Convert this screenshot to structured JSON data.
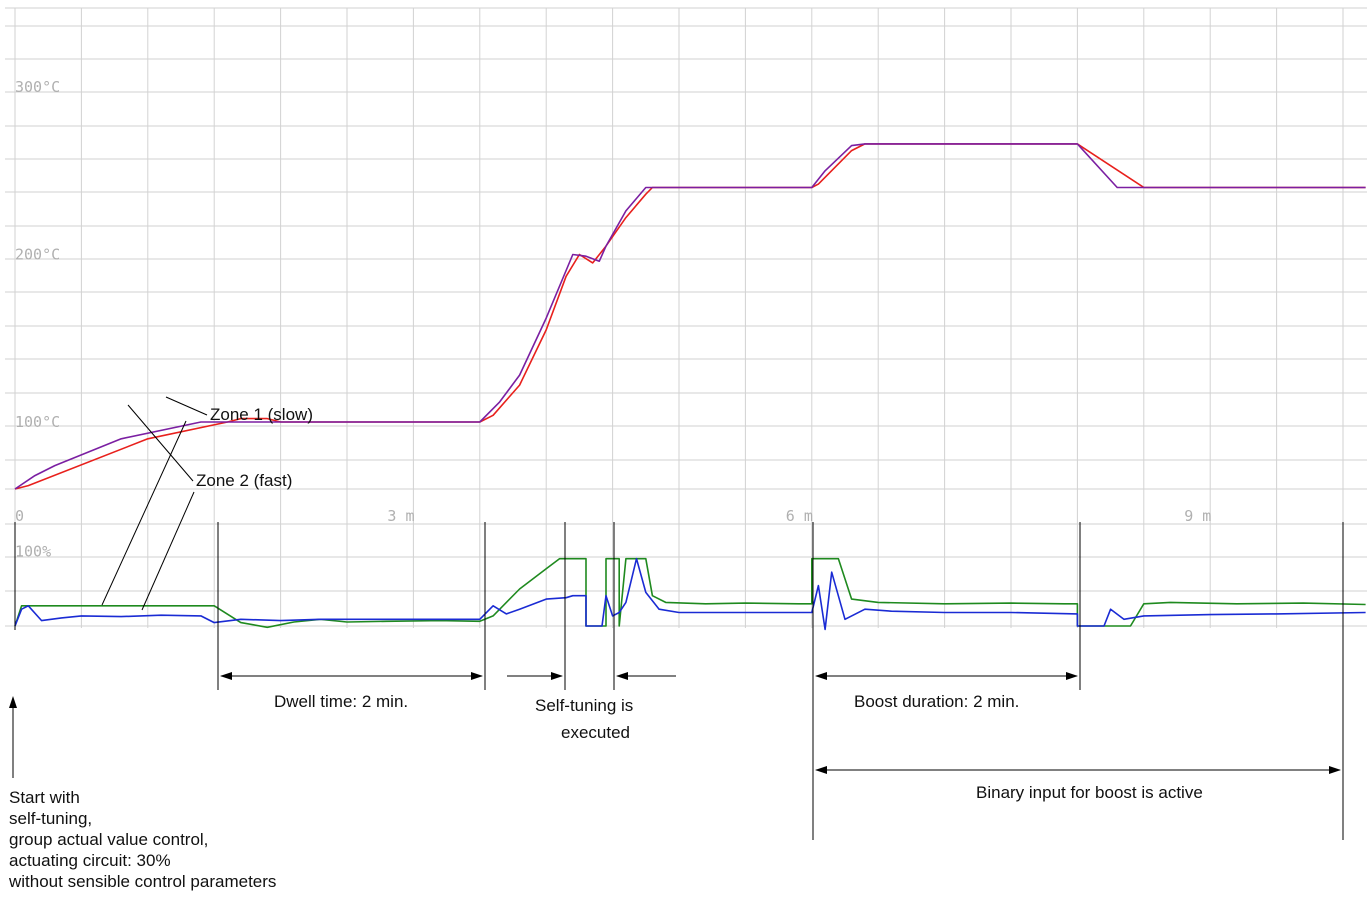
{
  "chart_data": {
    "type": "line",
    "x_unit": "min",
    "x_ticks": [
      {
        "x": 0,
        "label": "0"
      },
      {
        "x": 3,
        "label": "3 m"
      },
      {
        "x": 6,
        "label": "6 m"
      },
      {
        "x": 9,
        "label": "9 m"
      }
    ],
    "xlim": [
      0,
      10.17
    ],
    "grid": true,
    "temperature_panel": {
      "ylim": [
        60,
        310
      ],
      "y_ticks": [
        {
          "y": 300,
          "label": "300°C"
        },
        {
          "y": 200,
          "label": "200°C"
        },
        {
          "y": 100,
          "label": "100°C"
        }
      ],
      "series": [
        {
          "color": "#e8201c",
          "points": [
            [
              0,
              60
            ],
            [
              0.1,
              62
            ],
            [
              1.0,
              90
            ],
            [
              1.6,
              100
            ],
            [
              1.7,
              102
            ],
            [
              1.9,
              102
            ],
            [
              2.0,
              100
            ],
            [
              2.5,
              100
            ],
            [
              3.5,
              100
            ],
            [
              3.6,
              104
            ],
            [
              3.8,
              122
            ],
            [
              4.0,
              155
            ],
            [
              4.15,
              187
            ],
            [
              4.25,
              200
            ],
            [
              4.35,
              195
            ],
            [
              4.45,
              205
            ],
            [
              4.6,
              222
            ],
            [
              4.75,
              236
            ],
            [
              4.8,
              240
            ],
            [
              6.0,
              240
            ],
            [
              6.05,
              242
            ],
            [
              6.3,
              262
            ],
            [
              6.4,
              266
            ],
            [
              8.0,
              266
            ],
            [
              8.5,
              240
            ],
            [
              10.17,
              240
            ]
          ]
        },
        {
          "color": "#7b1fa2",
          "points": [
            [
              0,
              60
            ],
            [
              0.15,
              68
            ],
            [
              0.3,
              74
            ],
            [
              0.8,
              90
            ],
            [
              1.4,
              100
            ],
            [
              1.7,
              100
            ],
            [
              2.5,
              100
            ],
            [
              3.5,
              100
            ],
            [
              3.65,
              112
            ],
            [
              3.8,
              128
            ],
            [
              4.0,
              162
            ],
            [
              4.2,
              200
            ],
            [
              4.3,
              199
            ],
            [
              4.4,
              196
            ],
            [
              4.45,
              205
            ],
            [
              4.6,
              226
            ],
            [
              4.75,
              240
            ],
            [
              6.0,
              240
            ],
            [
              6.1,
              250
            ],
            [
              6.3,
              265
            ],
            [
              6.4,
              266
            ],
            [
              8.0,
              266
            ],
            [
              8.3,
              240
            ],
            [
              10.17,
              240
            ]
          ]
        }
      ]
    },
    "output_panel": {
      "ylim": [
        -10,
        110
      ],
      "y_ticks": [
        {
          "y": 100,
          "label": "100%"
        }
      ],
      "series": [
        {
          "color": "#1f8a1f",
          "points": [
            [
              0,
              0
            ],
            [
              0.05,
              30
            ],
            [
              1.5,
              30
            ],
            [
              1.7,
              5
            ],
            [
              1.9,
              -2
            ],
            [
              2.1,
              6
            ],
            [
              2.3,
              10
            ],
            [
              2.5,
              6
            ],
            [
              2.8,
              7
            ],
            [
              3.2,
              8
            ],
            [
              3.5,
              7
            ],
            [
              3.6,
              15
            ],
            [
              3.8,
              55
            ],
            [
              4.0,
              85
            ],
            [
              4.1,
              100
            ],
            [
              4.3,
              100
            ],
            [
              4.3,
              0
            ],
            [
              4.45,
              0
            ],
            [
              4.45,
              100
            ],
            [
              4.55,
              100
            ],
            [
              4.55,
              0
            ],
            [
              4.6,
              100
            ],
            [
              4.75,
              100
            ],
            [
              4.8,
              45
            ],
            [
              4.9,
              35
            ],
            [
              5.2,
              33
            ],
            [
              5.5,
              34
            ],
            [
              5.9,
              33
            ],
            [
              6.0,
              33
            ],
            [
              6.0,
              100
            ],
            [
              6.2,
              100
            ],
            [
              6.3,
              40
            ],
            [
              6.5,
              35
            ],
            [
              7.0,
              33
            ],
            [
              7.5,
              34
            ],
            [
              7.9,
              33
            ],
            [
              8.0,
              33
            ],
            [
              8.0,
              0
            ],
            [
              8.4,
              0
            ],
            [
              8.5,
              33
            ],
            [
              8.7,
              35
            ],
            [
              9.2,
              33
            ],
            [
              9.7,
              34
            ],
            [
              10.17,
              32
            ]
          ]
        },
        {
          "color": "#1a2bd4",
          "points": [
            [
              0,
              0
            ],
            [
              0.05,
              25
            ],
            [
              0.1,
              30
            ],
            [
              0.2,
              8
            ],
            [
              0.35,
              12
            ],
            [
              0.5,
              15
            ],
            [
              0.8,
              14
            ],
            [
              1.1,
              16
            ],
            [
              1.4,
              15
            ],
            [
              1.5,
              5
            ],
            [
              1.7,
              10
            ],
            [
              2.0,
              8
            ],
            [
              2.3,
              10
            ],
            [
              2.7,
              10
            ],
            [
              3.1,
              10
            ],
            [
              3.5,
              10
            ],
            [
              3.6,
              30
            ],
            [
              3.7,
              18
            ],
            [
              3.8,
              25
            ],
            [
              4.0,
              40
            ],
            [
              4.15,
              42
            ],
            [
              4.2,
              45
            ],
            [
              4.3,
              45
            ],
            [
              4.3,
              0
            ],
            [
              4.42,
              0
            ],
            [
              4.45,
              45
            ],
            [
              4.5,
              15
            ],
            [
              4.55,
              20
            ],
            [
              4.6,
              35
            ],
            [
              4.68,
              100
            ],
            [
              4.75,
              50
            ],
            [
              4.85,
              25
            ],
            [
              5.0,
              20
            ],
            [
              5.5,
              20
            ],
            [
              5.9,
              20
            ],
            [
              6.0,
              20
            ],
            [
              6.05,
              60
            ],
            [
              6.1,
              -5
            ],
            [
              6.15,
              80
            ],
            [
              6.25,
              10
            ],
            [
              6.4,
              25
            ],
            [
              6.6,
              22
            ],
            [
              7.0,
              20
            ],
            [
              7.5,
              20
            ],
            [
              8.0,
              18
            ],
            [
              8.0,
              0
            ],
            [
              8.2,
              0
            ],
            [
              8.25,
              25
            ],
            [
              8.35,
              10
            ],
            [
              8.5,
              15
            ],
            [
              9.0,
              17
            ],
            [
              9.5,
              18
            ],
            [
              10.17,
              20
            ]
          ]
        }
      ]
    },
    "annotations": {
      "zone1": "Zone 1 (slow)",
      "zone2": "Zone 2 (fast)",
      "dwell": "Dwell time: 2 min.",
      "selftune_1": "Self-tuning is",
      "selftune_2": "executed",
      "boost_dur": "Boost duration: 2 min.",
      "binary": "Binary input for boost is active",
      "start_lines": [
        "Start with",
        "self-tuning,",
        "group actual value control,",
        "actuating circuit: 30%",
        "without sensible control parameters"
      ]
    }
  }
}
